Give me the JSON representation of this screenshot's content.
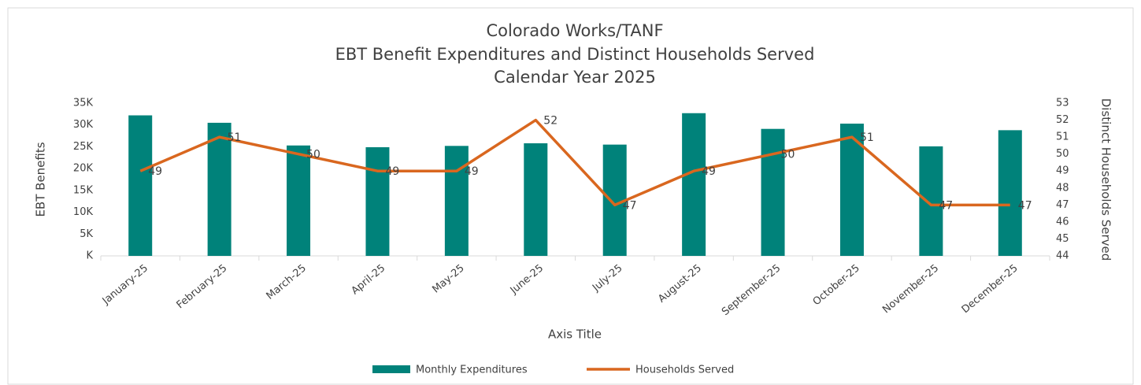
{
  "chart_data": {
    "type": "bar_line",
    "title": [
      "Colorado Works/TANF",
      "EBT Benefit Expenditures and Distinct Households Served",
      "Calendar Year 2025"
    ],
    "x_label": "Axis Title",
    "y_label": "EBT Benefits",
    "y2_label": "Distinct Households Served",
    "categories": [
      "January-25",
      "February-25",
      "March-25",
      "April-25",
      "May-25",
      "June-25",
      "July-25",
      "August-25",
      "September-25",
      "October-25",
      "November-25",
      "December-25"
    ],
    "series": [
      {
        "name": "Monthly Expenditures",
        "type": "bar",
        "color": "#00827a",
        "values": [
          32200,
          30500,
          25300,
          24900,
          25200,
          25800,
          25500,
          32700,
          29100,
          30300,
          25100,
          28800
        ]
      },
      {
        "name": "Households Served",
        "type": "line",
        "axis": "y2",
        "color": "#d9671f",
        "values": [
          49,
          51,
          50,
          49,
          49,
          52,
          47,
          49,
          50,
          51,
          47,
          47
        ]
      }
    ],
    "ylim": [
      0,
      35000
    ],
    "yticks": [
      {
        "value": 0,
        "label": "K"
      },
      {
        "value": 5000,
        "label": "5K"
      },
      {
        "value": 10000,
        "label": "10K"
      },
      {
        "value": 15000,
        "label": "15K"
      },
      {
        "value": 20000,
        "label": "20K"
      },
      {
        "value": 25000,
        "label": "25K"
      },
      {
        "value": 30000,
        "label": "30K"
      },
      {
        "value": 35000,
        "label": "35K"
      }
    ],
    "y2lim": [
      44,
      53
    ],
    "y2ticks": [
      44,
      45,
      46,
      47,
      48,
      49,
      50,
      51,
      52,
      53
    ],
    "grid": false,
    "legend": "bottom"
  }
}
